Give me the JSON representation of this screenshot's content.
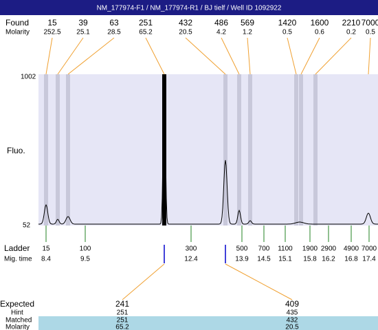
{
  "header": {
    "title": "NM_177974-F1  / NM_177974-R1  / BJ tielf / Well ID 1092922"
  },
  "found": {
    "label": "Found",
    "sizes": [
      15,
      39,
      63,
      251,
      432,
      486,
      569,
      1420,
      1600,
      2210,
      7000
    ],
    "molarity_label": "Molarity",
    "molarity": [
      252.5,
      25.1,
      28.5,
      65.2,
      20.5,
      4.2,
      1.2,
      0.5,
      0.6,
      0.2,
      0.5
    ]
  },
  "plot": {
    "y_label": "Fluo.",
    "y_top": "1002",
    "y_bottom": "52"
  },
  "ladder": {
    "label": "Ladder",
    "sizes": [
      15,
      100,
      300,
      500,
      700,
      1100,
      1900,
      2900,
      4900,
      7000
    ],
    "time_label": "Mig. time",
    "times": [
      8.4,
      9.5,
      12.4,
      13.9,
      14.5,
      15.1,
      15.8,
      16.2,
      16.8,
      17.4
    ]
  },
  "table": {
    "expected_label": "Expected",
    "expected": [
      241,
      409
    ],
    "hint_label": "Hint",
    "hint": [
      251,
      435
    ],
    "matched_label": "Matched",
    "matched": [
      251,
      432
    ],
    "molarity_label": "Molarity",
    "molarity": [
      65.2,
      20.5
    ]
  }
}
